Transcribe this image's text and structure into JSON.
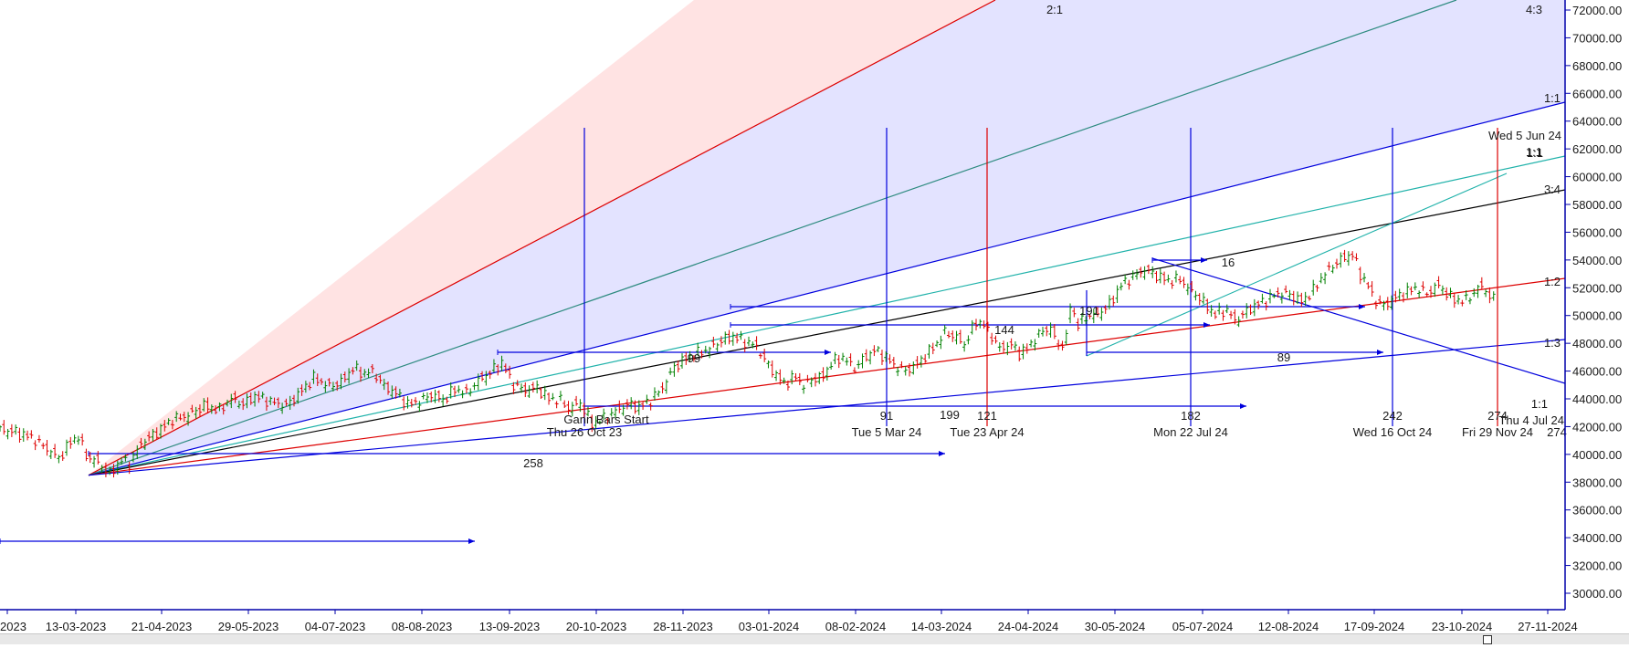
{
  "chart_data": {
    "type": "candlestick",
    "x_axis": {
      "tick_labels": [
        "2023",
        "13-03-2023",
        "21-04-2023",
        "29-05-2023",
        "04-07-2023",
        "08-08-2023",
        "13-09-2023",
        "20-10-2023",
        "28-11-2023",
        "03-01-2024",
        "08-02-2024",
        "14-03-2024",
        "24-04-2024",
        "30-05-2024",
        "05-07-2024",
        "12-08-2024",
        "17-09-2024",
        "23-10-2024",
        "27-11-2024"
      ]
    },
    "y_axis": {
      "tick_labels": [
        "72000.00",
        "70000.00",
        "68000.00",
        "66000.00",
        "64000.00",
        "62000.00",
        "60000.00",
        "58000.00",
        "56000.00",
        "54000.00",
        "52000.00",
        "50000.00",
        "48000.00",
        "46000.00",
        "44000.00",
        "42000.00",
        "40000.00",
        "38000.00",
        "36000.00",
        "34000.00",
        "32000.00",
        "30000.00"
      ],
      "range": [
        29000,
        72500
      ],
      "side": "right"
    },
    "price_path": [
      [
        0,
        41800
      ],
      [
        8,
        41600
      ],
      [
        16,
        41200
      ],
      [
        24,
        40400
      ],
      [
        30,
        39700
      ],
      [
        36,
        40900
      ],
      [
        40,
        41300
      ],
      [
        44,
        39900
      ],
      [
        50,
        39400
      ],
      [
        56,
        38600
      ],
      [
        62,
        39600
      ],
      [
        66,
        39300
      ],
      [
        72,
        40800
      ],
      [
        80,
        41600
      ],
      [
        88,
        42500
      ],
      [
        96,
        42800
      ],
      [
        104,
        43500
      ],
      [
        112,
        43200
      ],
      [
        118,
        44000
      ],
      [
        124,
        43600
      ],
      [
        130,
        44200
      ],
      [
        138,
        43800
      ],
      [
        146,
        43500
      ],
      [
        152,
        44300
      ],
      [
        160,
        45500
      ],
      [
        168,
        44900
      ],
      [
        174,
        45200
      ],
      [
        180,
        46200
      ],
      [
        186,
        45800
      ],
      [
        190,
        46000
      ],
      [
        196,
        44900
      ],
      [
        202,
        44400
      ],
      [
        208,
        43600
      ],
      [
        214,
        43800
      ],
      [
        220,
        44300
      ],
      [
        226,
        43900
      ],
      [
        232,
        44700
      ],
      [
        238,
        44400
      ],
      [
        244,
        45300
      ],
      [
        250,
        45900
      ],
      [
        256,
        46600
      ],
      [
        262,
        45000
      ],
      [
        268,
        44600
      ],
      [
        274,
        44800
      ],
      [
        280,
        44000
      ],
      [
        286,
        43900
      ],
      [
        290,
        43300
      ],
      [
        296,
        43700
      ],
      [
        302,
        42200
      ],
      [
        308,
        42600
      ],
      [
        314,
        43100
      ],
      [
        320,
        43600
      ],
      [
        326,
        43400
      ],
      [
        332,
        43900
      ],
      [
        338,
        44800
      ],
      [
        344,
        46300
      ],
      [
        350,
        46900
      ],
      [
        356,
        47300
      ],
      [
        362,
        47600
      ],
      [
        368,
        48200
      ],
      [
        374,
        48500
      ],
      [
        380,
        48100
      ],
      [
        386,
        47800
      ],
      [
        390,
        46800
      ],
      [
        396,
        45700
      ],
      [
        400,
        45100
      ],
      [
        406,
        45600
      ],
      [
        410,
        44900
      ],
      [
        414,
        45400
      ],
      [
        420,
        45600
      ],
      [
        424,
        46600
      ],
      [
        430,
        47000
      ],
      [
        436,
        46200
      ],
      [
        440,
        46800
      ],
      [
        446,
        47500
      ],
      [
        452,
        47000
      ],
      [
        456,
        46400
      ],
      [
        462,
        46000
      ],
      [
        468,
        46500
      ],
      [
        472,
        47100
      ],
      [
        478,
        48000
      ],
      [
        482,
        48800
      ],
      [
        488,
        48400
      ],
      [
        492,
        47900
      ],
      [
        498,
        49600
      ],
      [
        502,
        49300
      ],
      [
        506,
        48500
      ],
      [
        510,
        47600
      ],
      [
        516,
        47900
      ],
      [
        520,
        47300
      ],
      [
        524,
        47600
      ],
      [
        528,
        48300
      ],
      [
        532,
        48900
      ],
      [
        536,
        49100
      ],
      [
        540,
        47800
      ],
      [
        544,
        48300
      ],
      [
        546,
        50800
      ],
      [
        550,
        49300
      ],
      [
        554,
        49900
      ],
      [
        560,
        50100
      ],
      [
        566,
        50800
      ],
      [
        572,
        52200
      ],
      [
        578,
        52800
      ],
      [
        584,
        53300
      ],
      [
        590,
        52900
      ],
      [
        596,
        52500
      ],
      [
        602,
        52600
      ],
      [
        608,
        51700
      ],
      [
        612,
        51300
      ],
      [
        616,
        50600
      ],
      [
        620,
        50100
      ],
      [
        626,
        50400
      ],
      [
        630,
        49600
      ],
      [
        636,
        50300
      ],
      [
        640,
        50700
      ],
      [
        646,
        51100
      ],
      [
        652,
        51600
      ],
      [
        658,
        51500
      ],
      [
        664,
        51000
      ],
      [
        670,
        51800
      ],
      [
        674,
        52700
      ],
      [
        680,
        53600
      ],
      [
        686,
        54200
      ],
      [
        690,
        54400
      ],
      [
        694,
        53000
      ],
      [
        698,
        52100
      ],
      [
        702,
        51000
      ],
      [
        706,
        50700
      ],
      [
        712,
        51300
      ],
      [
        718,
        51700
      ],
      [
        722,
        52000
      ],
      [
        728,
        51600
      ],
      [
        734,
        52200
      ],
      [
        740,
        51300
      ],
      [
        746,
        51000
      ],
      [
        752,
        51600
      ],
      [
        756,
        52200
      ],
      [
        760,
        51300
      ],
      [
        764,
        51100
      ]
    ],
    "fan_lines": [
      {
        "label": "2:1",
        "color": "#dd0000"
      },
      {
        "label": "4:3",
        "color": "#2e8b80"
      },
      {
        "label": "1:1",
        "color": "#0000dd"
      },
      {
        "label": "1:1",
        "color": "#20b2aa"
      },
      {
        "label": "3:4",
        "color": "#000000"
      },
      {
        "label": "1:2",
        "color": "#dd0000"
      },
      {
        "label": "1:3",
        "color": "#0000dd"
      }
    ],
    "vertical_markers": [
      {
        "count": "",
        "date": "Thu 26 Oct 23",
        "color": "#0000dd"
      },
      {
        "count": "91",
        "date": "Tue 5 Mar 24",
        "color": "#0000dd"
      },
      {
        "count": "121",
        "date": "Tue 23 Apr 24",
        "color": "#dd0000"
      },
      {
        "count": "182",
        "date": "Mon 22 Jul 24",
        "color": "#0000dd"
      },
      {
        "count": "242",
        "date": "Wed 16 Oct 24",
        "color": "#0000dd"
      },
      {
        "count": "274",
        "date": "Fri 29 Nov 24",
        "color": "#dd0000"
      }
    ],
    "annotations": {
      "gann_start": "Gann Bars Start",
      "counts": [
        "258",
        "99",
        "199",
        "144",
        "191",
        "16",
        "89"
      ],
      "top_right": "Wed 5 Jun 24",
      "top_right_ratio": "1:1",
      "bottom_right_ratio": "1:1",
      "bottom_right_date": "Thu 4 Jul 24"
    },
    "colors": {
      "up_bar": "#008000",
      "down_bar": "#dd0000",
      "red_zone": "#ffe3e3",
      "blue_zone": "#e3e3ff",
      "axis": "#0000aa"
    }
  }
}
